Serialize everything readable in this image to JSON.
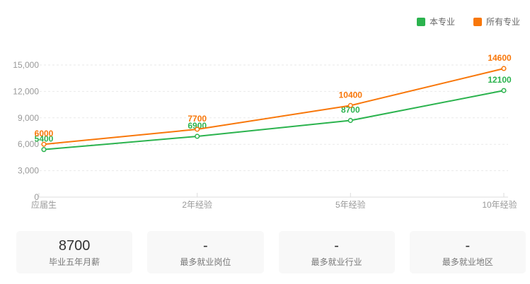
{
  "legend": {
    "items": [
      {
        "label": "本专业",
        "color": "#2bb34e"
      },
      {
        "label": "所有专业",
        "color": "#f8770a"
      }
    ]
  },
  "chart_data": {
    "type": "line",
    "categories": [
      "应届生",
      "2年经验",
      "5年经验",
      "10年经验"
    ],
    "series": [
      {
        "name": "本专业",
        "color": "#2bb34e",
        "values": [
          5400,
          6900,
          8700,
          12100
        ]
      },
      {
        "name": "所有专业",
        "color": "#f8770a",
        "values": [
          6000,
          7700,
          10400,
          14600
        ]
      }
    ],
    "title": "",
    "xlabel": "",
    "ylabel": "",
    "ylim": [
      0,
      15000
    ],
    "y_tick_values": [
      0,
      3000,
      6000,
      9000,
      12000,
      15000
    ],
    "y_tick_labels": [
      "0",
      "3,000",
      "6,000",
      "9,000",
      "12,000",
      "15,000"
    ],
    "grid": "horizontal dashed",
    "legend_position": "top-right",
    "point_labels": {
      "本专业": [
        "5400",
        "6900",
        "8700",
        "12100"
      ],
      "所有专业": [
        "6000",
        "7700",
        "10400",
        "14600"
      ]
    }
  },
  "summary_cards": [
    {
      "value": "8700",
      "label": "毕业五年月薪"
    },
    {
      "value": "-",
      "label": "最多就业岗位"
    },
    {
      "value": "-",
      "label": "最多就业行业"
    },
    {
      "value": "-",
      "label": "最多就业地区"
    }
  ],
  "colors": {
    "axis": "#dddddd",
    "grid": "#e9e9e9",
    "tick_text": "#999999",
    "card_bg": "#f8f8f8"
  }
}
